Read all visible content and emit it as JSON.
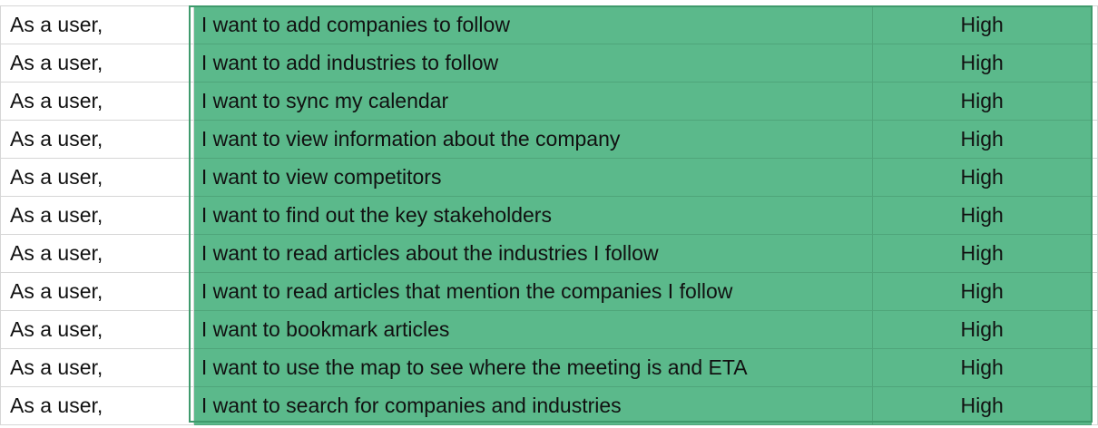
{
  "sheet": {
    "colors": {
      "priority_fill": "#5bb98b",
      "grid_line": "#d6d6d6",
      "selection_border": "#3f9a6c"
    },
    "rows": [
      {
        "who": "As a user,",
        "want": "I want to add companies to follow",
        "priority": "High"
      },
      {
        "who": "As a user,",
        "want": "I want to add industries to follow",
        "priority": "High"
      },
      {
        "who": "As a user,",
        "want": "I want to sync my calendar",
        "priority": "High"
      },
      {
        "who": "As a user,",
        "want": "I want to view information about the company",
        "priority": "High"
      },
      {
        "who": "As a user,",
        "want": "I want to view competitors",
        "priority": "High"
      },
      {
        "who": "As a user,",
        "want": "I want to find out the key stakeholders",
        "priority": "High"
      },
      {
        "who": "As a user,",
        "want": "I want to read articles about the industries I follow",
        "priority": "High"
      },
      {
        "who": "As a user,",
        "want": "I want to read articles that mention the companies I follow",
        "priority": "High"
      },
      {
        "who": "As a user,",
        "want": "I want to bookmark articles",
        "priority": "High"
      },
      {
        "who": "As a user,",
        "want": "I want to use the map to see where the meeting is and ETA",
        "priority": "High"
      },
      {
        "who": "As a user,",
        "want": "I want to search for companies and industries",
        "priority": "High"
      }
    ]
  }
}
